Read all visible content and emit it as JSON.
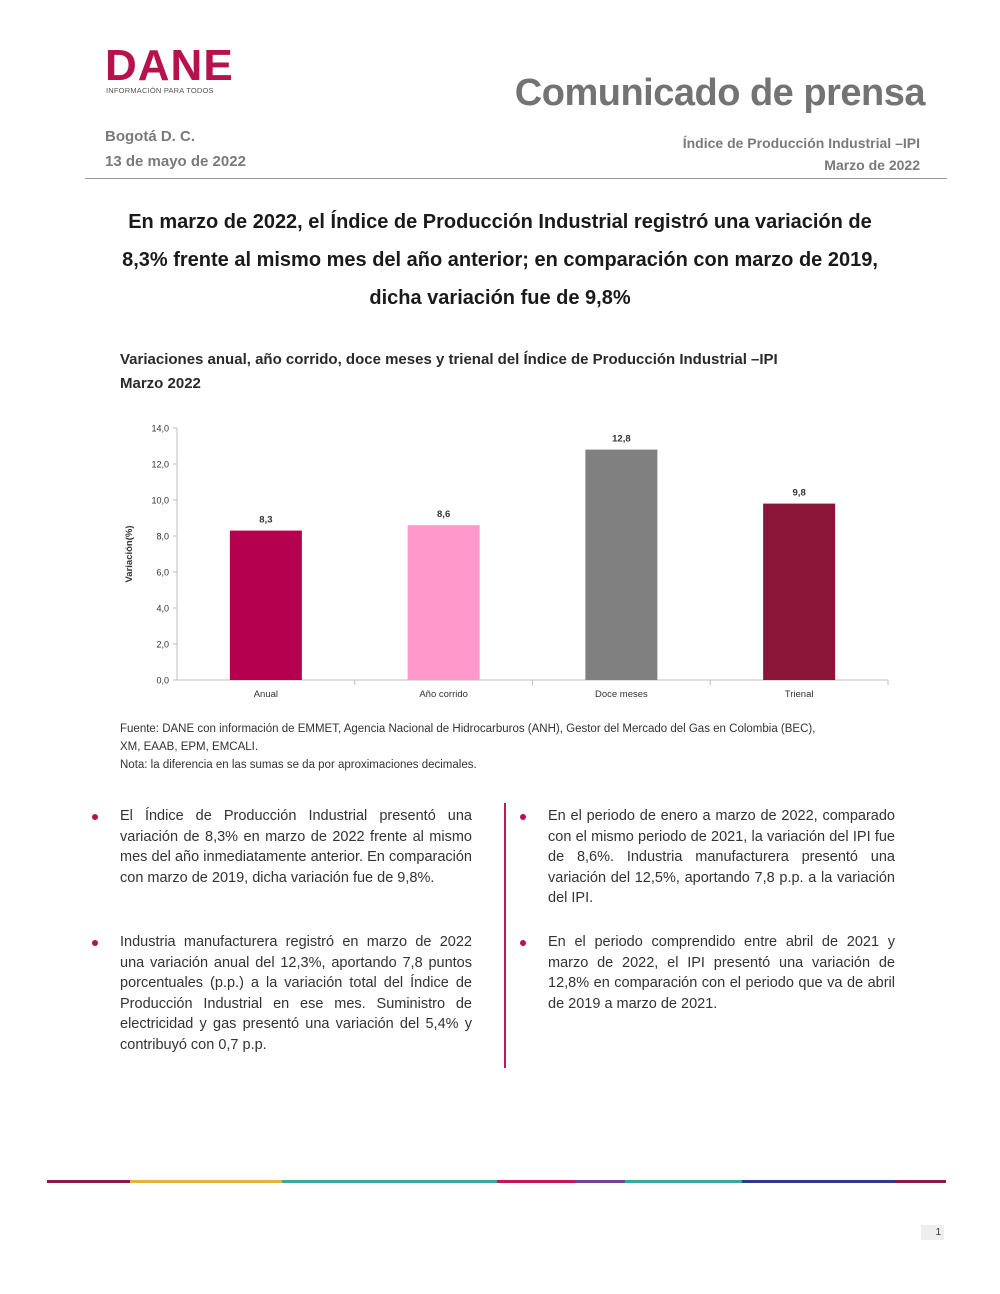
{
  "header": {
    "logo_word": "DANE",
    "logo_tagline": "INFORMACIÓN PARA TODOS",
    "doc_type": "Comunicado de prensa",
    "city": "Bogotá D. C.",
    "date": "13 de mayo de 2022",
    "indicator": "Índice de Producción Industrial –IPI",
    "period": "Marzo de 2022"
  },
  "headline": "En marzo de 2022, el Índice de Producción Industrial registró una variación de 8,3% frente al mismo mes del año anterior; en comparación con marzo de 2019, dicha variación fue de 9,8%",
  "chart_title": {
    "line1": "Variaciones anual, año corrido, doce meses y trienal del Índice de Producción Industrial –IPI",
    "line2": "Marzo 2022"
  },
  "chart_data": {
    "type": "bar",
    "categories": [
      "Anual",
      "Año corrido",
      "Doce meses",
      "Trienal"
    ],
    "values": [
      8.3,
      8.6,
      12.8,
      9.8
    ],
    "value_labels": [
      "8,3",
      "8,6",
      "12,8",
      "9,8"
    ],
    "colors": [
      "#b5004f",
      "#ff99cc",
      "#808080",
      "#8b1538"
    ],
    "ylabel": "Variación(%)",
    "xlabel": "",
    "ylim": [
      0,
      14
    ],
    "yticks": [
      "0,0",
      "2,0",
      "4,0",
      "6,0",
      "8,0",
      "10,0",
      "12,0",
      "14,0"
    ],
    "grid": false,
    "legend": "none"
  },
  "source": {
    "line1": "Fuente: DANE con información de EMMET, Agencia Nacional de Hidrocarburos (ANH), Gestor del Mercado del Gas en Colombia (BEC),",
    "line2": "XM, EAAB, EPM, EMCALI.",
    "note": "Nota: la diferencia en las sumas se da por aproximaciones decimales."
  },
  "bullets_left": [
    "El Índice de Producción Industrial presentó una variación de 8,3% en marzo de 2022 frente al mismo mes del año inmediatamente anterior. En comparación con marzo de 2019, dicha variación fue de 9,8%.",
    "Industria manufacturera registró en marzo de 2022 una variación anual del 12,3%, aportando 7,8 puntos porcentuales (p.p.) a la variación total del Índice de Producción Industrial en ese mes. Suministro de electricidad y gas presentó una variación del 5,4% y contribuyó con 0,7 p.p."
  ],
  "bullets_right": [
    "En el periodo de enero a marzo de 2022, comparado con el mismo periodo de 2021, la variación del IPI fue de 8,6%. Industria manufacturera presentó una variación del 12,5%, aportando 7,8 p.p. a la variación del IPI.",
    "En el periodo comprendido entre abril de 2021 y marzo de 2022, el IPI presentó una variación de 12,8% en comparación con el periodo que va de abril de 2019 a marzo de 2021."
  ],
  "footer": {
    "page_number": "1",
    "stripe_colors": [
      "#8b1a4a",
      "#e0b53a",
      "#3aa89e",
      "#c2185b",
      "#7a3f9a",
      "#3aa89e",
      "#2e3a8c",
      "#8b1a4a"
    ]
  }
}
